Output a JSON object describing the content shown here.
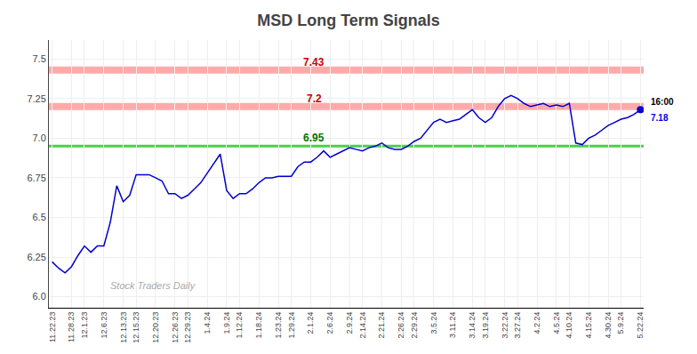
{
  "chart_data": {
    "type": "line",
    "title": "MSD Long Term Signals",
    "categories": [
      "11.22.23",
      null,
      null,
      "11.28.23",
      null,
      "12.1.23",
      null,
      null,
      "12.6.23",
      null,
      null,
      "12.13.23",
      null,
      "12.15.23",
      null,
      null,
      "12.20.23",
      null,
      null,
      "12.26.23",
      null,
      "12.29.23",
      null,
      null,
      "1.4.24",
      null,
      null,
      "1.9.24",
      null,
      "1.12.24",
      null,
      null,
      "1.18.24",
      null,
      null,
      "1.23.24",
      null,
      "1.29.24",
      null,
      null,
      "2.1.24",
      null,
      null,
      "2.6.24",
      null,
      null,
      "2.9.24",
      null,
      "2.14.24",
      null,
      null,
      "2.21.24",
      null,
      null,
      "2.26.24",
      null,
      "2.29.24",
      null,
      null,
      "3.5.24",
      null,
      null,
      "3.11.24",
      null,
      null,
      "3.14.24",
      null,
      "3.19.24",
      null,
      null,
      "3.22.24",
      null,
      "3.27.24",
      null,
      null,
      "4.2.24",
      null,
      null,
      "4.5.24",
      null,
      "4.10.24",
      null,
      null,
      "4.15.24",
      null,
      null,
      "4.30.24",
      null,
      "5.9.24",
      null,
      null,
      "5.22.24"
    ],
    "values": [
      6.22,
      6.18,
      6.15,
      6.19,
      6.26,
      6.32,
      6.28,
      6.32,
      6.32,
      6.47,
      6.7,
      6.6,
      6.64,
      6.77,
      6.77,
      6.77,
      6.75,
      6.73,
      6.65,
      6.65,
      6.62,
      6.64,
      6.68,
      6.72,
      6.78,
      6.84,
      6.9,
      6.67,
      6.62,
      6.65,
      6.65,
      6.68,
      6.72,
      6.75,
      6.75,
      6.76,
      6.76,
      6.76,
      6.82,
      6.85,
      6.85,
      6.88,
      6.92,
      6.88,
      6.9,
      6.92,
      6.94,
      6.93,
      6.92,
      6.94,
      6.95,
      6.97,
      6.94,
      6.93,
      6.93,
      6.95,
      6.98,
      7.0,
      7.05,
      7.1,
      7.12,
      7.1,
      7.11,
      7.12,
      7.15,
      7.18,
      7.13,
      7.1,
      7.13,
      7.2,
      7.25,
      7.27,
      7.25,
      7.22,
      7.2,
      7.21,
      7.22,
      7.2,
      7.21,
      7.2,
      7.22,
      6.97,
      6.96,
      7.0,
      7.02,
      7.05,
      7.08,
      7.1,
      7.12,
      7.13,
      7.15,
      7.18
    ],
    "color": "#0000cc",
    "ylim": [
      5.93,
      7.62
    ],
    "yticks": [
      {
        "value": 6,
        "label": "6.0"
      },
      6.25,
      6.5,
      6.75,
      {
        "value": 7,
        "label": "7.0"
      },
      7.25,
      7.5
    ],
    "grid": true,
    "hlines": [
      {
        "y": 7.43,
        "label": "7.43",
        "color": "#ffaaaa",
        "label_color": "#cc0000"
      },
      {
        "y": 7.2,
        "label": "7.2",
        "color": "#ffaaaa",
        "label_color": "#cc0000"
      },
      {
        "y": 6.95,
        "label": "6.95",
        "color": "#00bb00",
        "label_color": "#007700"
      }
    ],
    "end_labels": [
      {
        "text": "16:00",
        "color": "#000000"
      },
      {
        "text": "7.18",
        "color": "#0000ee"
      }
    ],
    "watermark": "Stock Traders Daily"
  }
}
